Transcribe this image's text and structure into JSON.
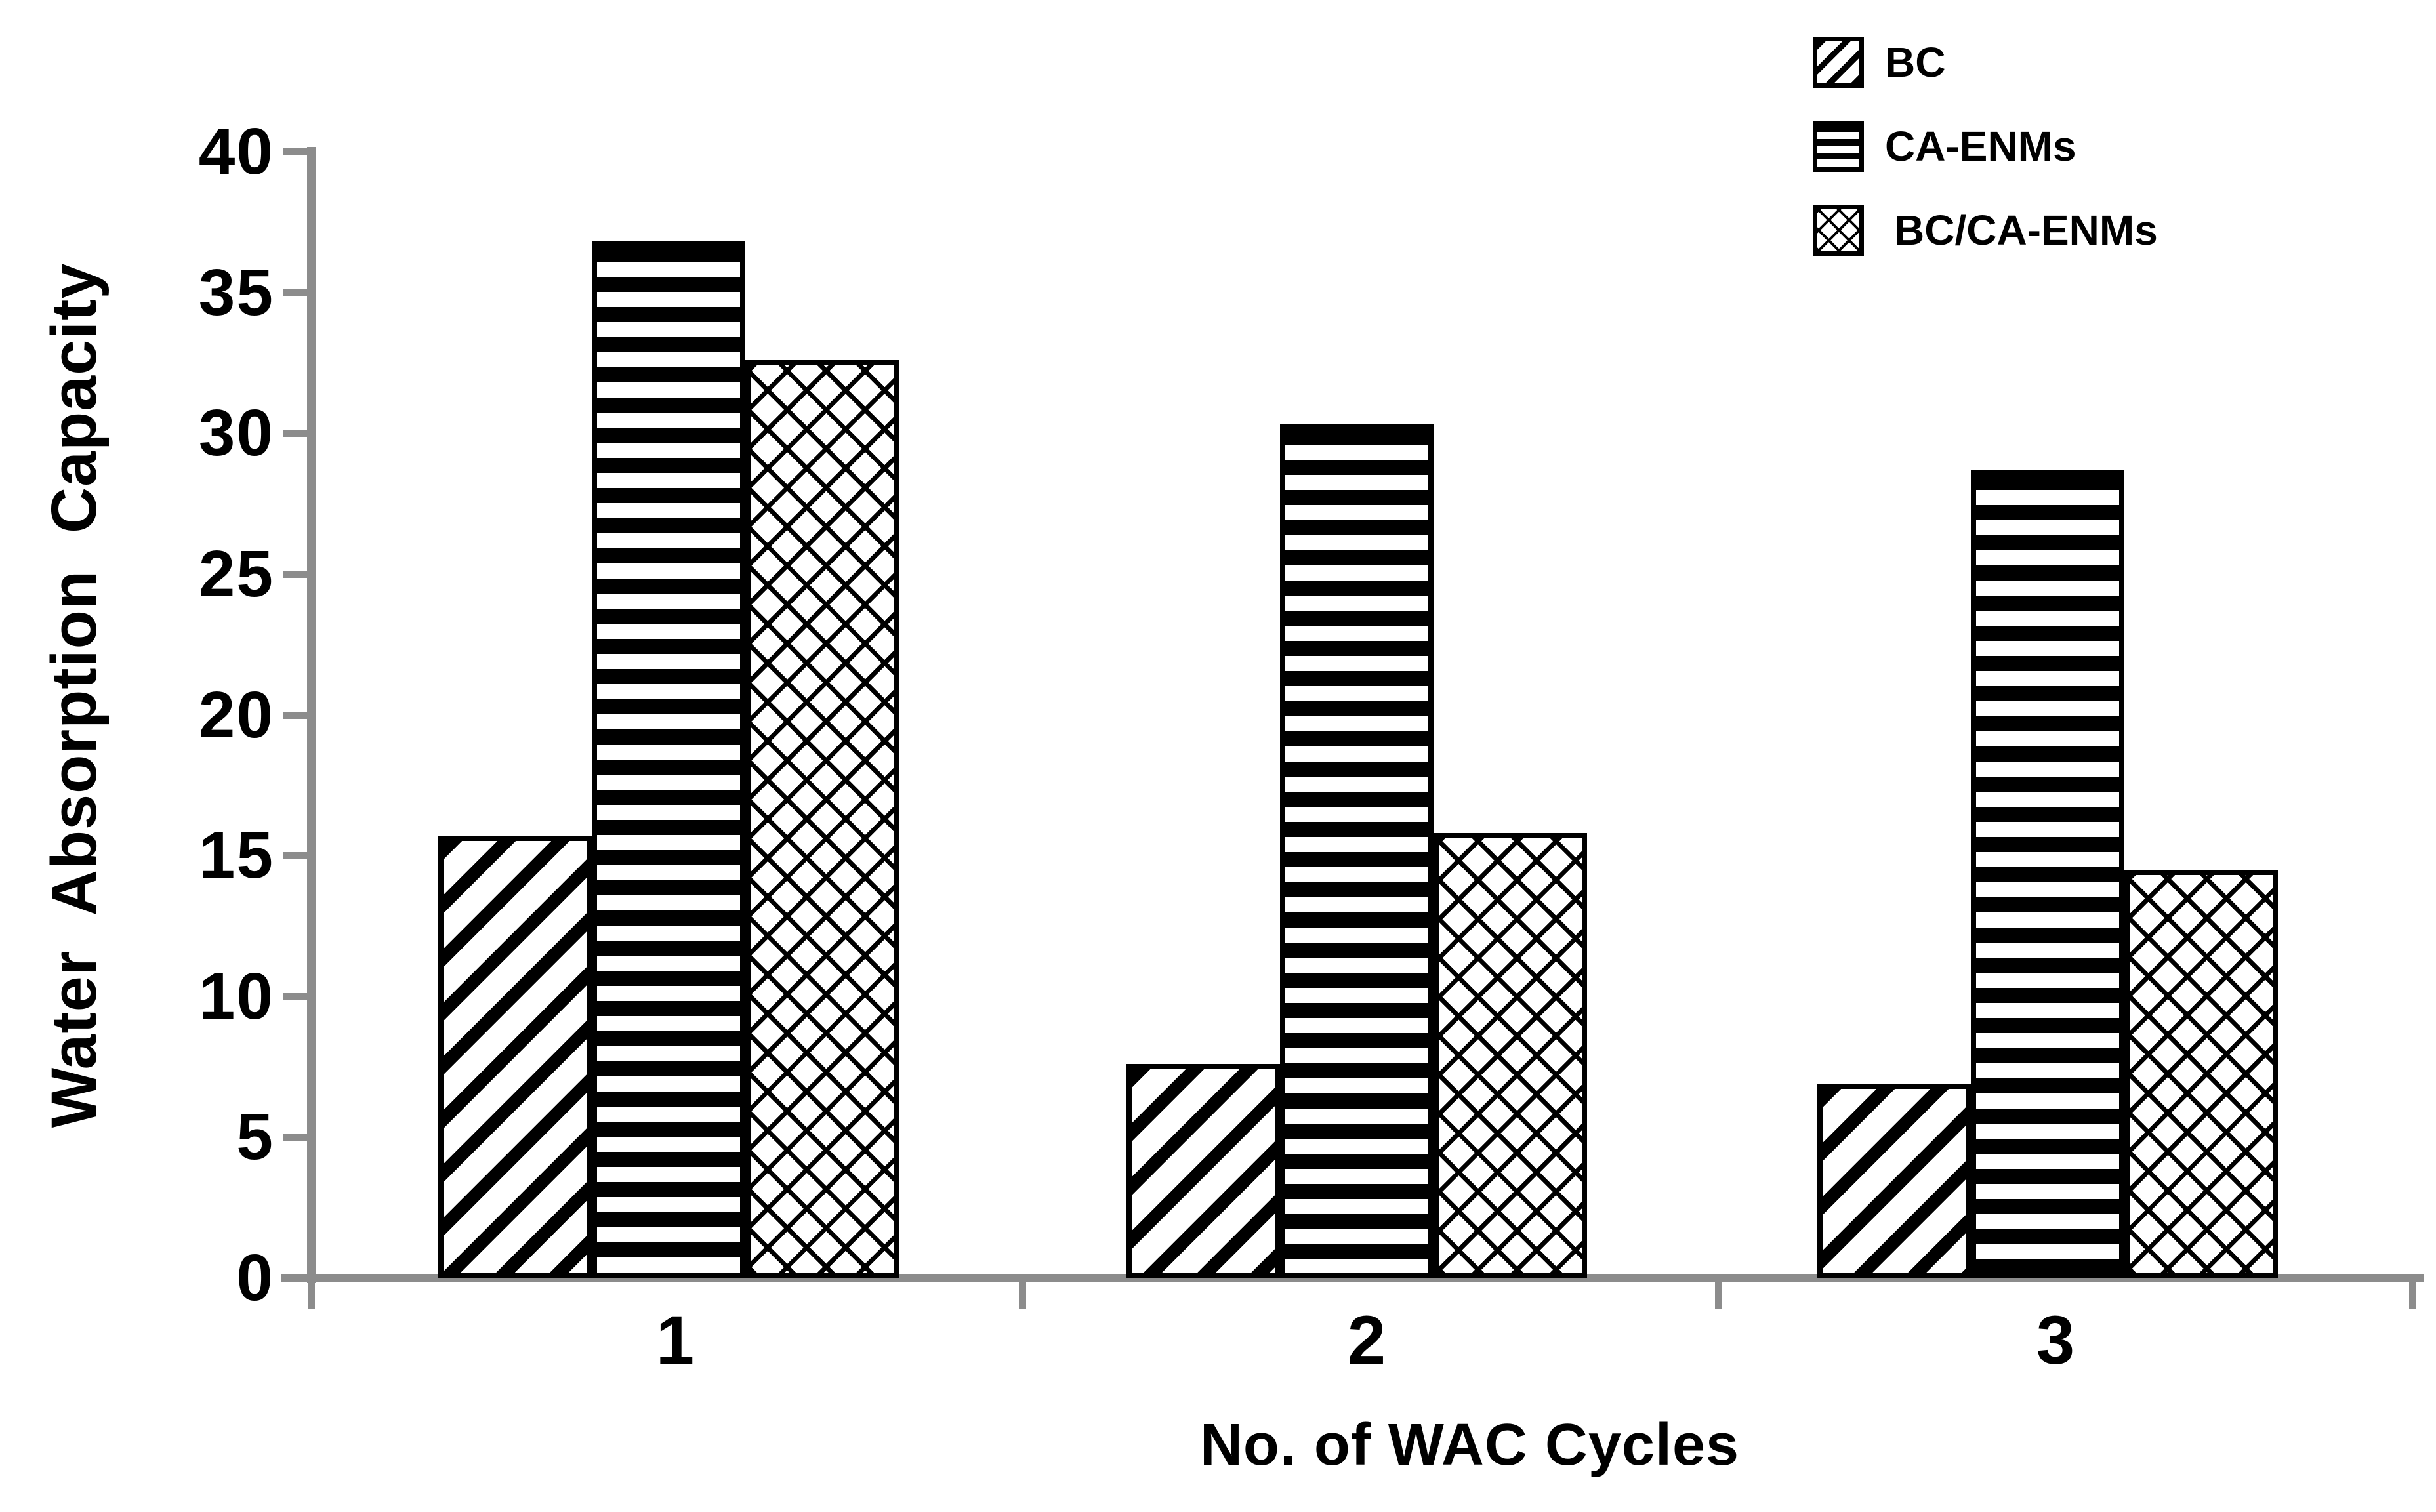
{
  "chart_data": {
    "type": "bar",
    "title": "",
    "xlabel": "No. of WAC Cycles",
    "ylabel": "Water Absorption Capacity",
    "categories": [
      "1",
      "2",
      "3"
    ],
    "series": [
      {
        "name": "BC",
        "pattern": "diagonal-hatch",
        "values": [
          15.7,
          7.6,
          6.9
        ]
      },
      {
        "name": "CA-ENMs",
        "pattern": "horizontal-stripes",
        "values": [
          36.8,
          30.3,
          28.7
        ]
      },
      {
        "name": "BC/CA-ENMs",
        "pattern": "diamond-crosshatch",
        "values": [
          32.6,
          15.8,
          14.5
        ]
      }
    ],
    "ylim": [
      0,
      40
    ],
    "yticks": [
      0,
      5,
      10,
      15,
      20,
      25,
      30,
      35,
      40
    ],
    "grid": false,
    "legend_position": "top-right",
    "axis_color": "#8c8c8c",
    "bar_outline_color": "#000000",
    "background_color": "#ffffff"
  }
}
